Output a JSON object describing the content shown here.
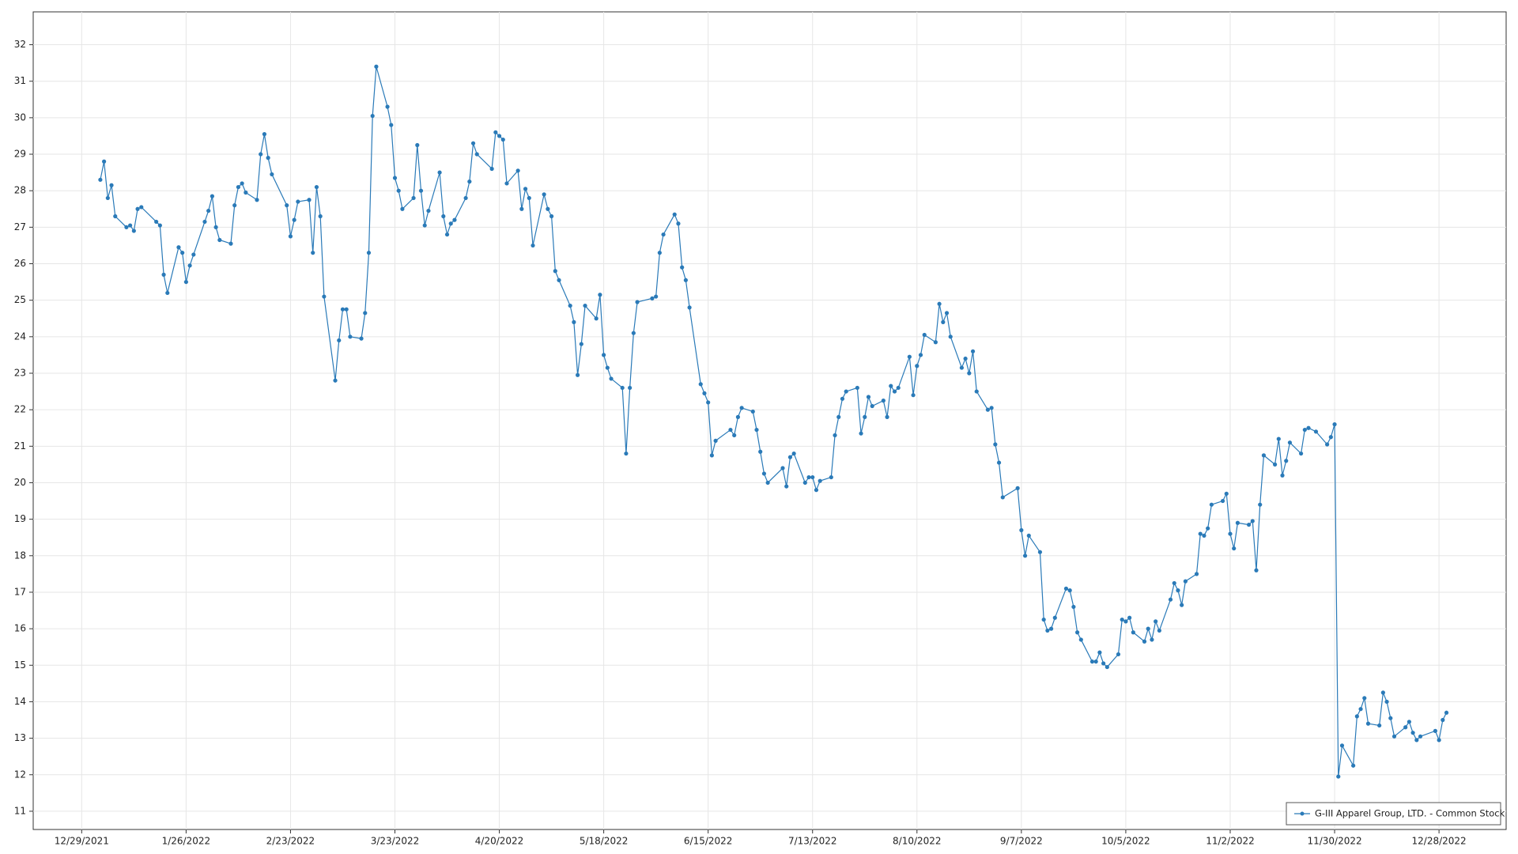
{
  "chart_data": {
    "type": "line",
    "grid": true,
    "legend": "lower right",
    "xlim": [
      "2021-12-16",
      "2023-01-15"
    ],
    "xticks": [
      {
        "value": "2021-12-29",
        "label": "12/29/2021"
      },
      {
        "value": "2022-01-26",
        "label": "1/26/2022"
      },
      {
        "value": "2022-02-23",
        "label": "2/23/2022"
      },
      {
        "value": "2022-03-23",
        "label": "3/23/2022"
      },
      {
        "value": "2022-04-20",
        "label": "4/20/2022"
      },
      {
        "value": "2022-05-18",
        "label": "5/18/2022"
      },
      {
        "value": "2022-06-15",
        "label": "6/15/2022"
      },
      {
        "value": "2022-07-13",
        "label": "7/13/2022"
      },
      {
        "value": "2022-08-10",
        "label": "8/10/2022"
      },
      {
        "value": "2022-09-07",
        "label": "9/7/2022"
      },
      {
        "value": "2022-10-05",
        "label": "10/5/2022"
      },
      {
        "value": "2022-11-02",
        "label": "11/2/2022"
      },
      {
        "value": "2022-11-30",
        "label": "11/30/2022"
      },
      {
        "value": "2022-12-28",
        "label": "12/28/2022"
      }
    ],
    "ylim": [
      10.5,
      32.9
    ],
    "yticks": [
      11,
      12,
      13,
      14,
      15,
      16,
      17,
      18,
      19,
      20,
      21,
      22,
      23,
      24,
      25,
      26,
      27,
      28,
      29,
      30,
      31,
      32
    ],
    "x": [
      "2022-01-03",
      "2022-01-04",
      "2022-01-05",
      "2022-01-06",
      "2022-01-07",
      "2022-01-10",
      "2022-01-11",
      "2022-01-12",
      "2022-01-13",
      "2022-01-14",
      "2022-01-18",
      "2022-01-19",
      "2022-01-20",
      "2022-01-21",
      "2022-01-24",
      "2022-01-25",
      "2022-01-26",
      "2022-01-27",
      "2022-01-28",
      "2022-01-31",
      "2022-02-01",
      "2022-02-02",
      "2022-02-03",
      "2022-02-04",
      "2022-02-07",
      "2022-02-08",
      "2022-02-09",
      "2022-02-10",
      "2022-02-11",
      "2022-02-14",
      "2022-02-15",
      "2022-02-16",
      "2022-02-17",
      "2022-02-18",
      "2022-02-22",
      "2022-02-23",
      "2022-02-24",
      "2022-02-25",
      "2022-02-28",
      "2022-03-01",
      "2022-03-02",
      "2022-03-03",
      "2022-03-04",
      "2022-03-07",
      "2022-03-08",
      "2022-03-09",
      "2022-03-10",
      "2022-03-11",
      "2022-03-14",
      "2022-03-15",
      "2022-03-16",
      "2022-03-17",
      "2022-03-18",
      "2022-03-21",
      "2022-03-22",
      "2022-03-23",
      "2022-03-24",
      "2022-03-25",
      "2022-03-28",
      "2022-03-29",
      "2022-03-30",
      "2022-03-31",
      "2022-04-01",
      "2022-04-04",
      "2022-04-05",
      "2022-04-06",
      "2022-04-07",
      "2022-04-08",
      "2022-04-11",
      "2022-04-12",
      "2022-04-13",
      "2022-04-14",
      "2022-04-18",
      "2022-04-19",
      "2022-04-20",
      "2022-04-21",
      "2022-04-22",
      "2022-04-25",
      "2022-04-26",
      "2022-04-27",
      "2022-04-28",
      "2022-04-29",
      "2022-05-02",
      "2022-05-03",
      "2022-05-04",
      "2022-05-05",
      "2022-05-06",
      "2022-05-09",
      "2022-05-10",
      "2022-05-11",
      "2022-05-12",
      "2022-05-13",
      "2022-05-16",
      "2022-05-17",
      "2022-05-18",
      "2022-05-19",
      "2022-05-20",
      "2022-05-23",
      "2022-05-24",
      "2022-05-25",
      "2022-05-26",
      "2022-05-27",
      "2022-05-31",
      "2022-06-01",
      "2022-06-02",
      "2022-06-03",
      "2022-06-06",
      "2022-06-07",
      "2022-06-08",
      "2022-06-09",
      "2022-06-10",
      "2022-06-13",
      "2022-06-14",
      "2022-06-15",
      "2022-06-16",
      "2022-06-17",
      "2022-06-21",
      "2022-06-22",
      "2022-06-23",
      "2022-06-24",
      "2022-06-27",
      "2022-06-28",
      "2022-06-29",
      "2022-06-30",
      "2022-07-01",
      "2022-07-05",
      "2022-07-06",
      "2022-07-07",
      "2022-07-08",
      "2022-07-11",
      "2022-07-12",
      "2022-07-13",
      "2022-07-14",
      "2022-07-15",
      "2022-07-18",
      "2022-07-19",
      "2022-07-20",
      "2022-07-21",
      "2022-07-22",
      "2022-07-25",
      "2022-07-26",
      "2022-07-27",
      "2022-07-28",
      "2022-07-29",
      "2022-08-01",
      "2022-08-02",
      "2022-08-03",
      "2022-08-04",
      "2022-08-05",
      "2022-08-08",
      "2022-08-09",
      "2022-08-10",
      "2022-08-11",
      "2022-08-12",
      "2022-08-15",
      "2022-08-16",
      "2022-08-17",
      "2022-08-18",
      "2022-08-19",
      "2022-08-22",
      "2022-08-23",
      "2022-08-24",
      "2022-08-25",
      "2022-08-26",
      "2022-08-29",
      "2022-08-30",
      "2022-08-31",
      "2022-09-01",
      "2022-09-02",
      "2022-09-06",
      "2022-09-07",
      "2022-09-08",
      "2022-09-09",
      "2022-09-12",
      "2022-09-13",
      "2022-09-14",
      "2022-09-15",
      "2022-09-16",
      "2022-09-19",
      "2022-09-20",
      "2022-09-21",
      "2022-09-22",
      "2022-09-23",
      "2022-09-26",
      "2022-09-27",
      "2022-09-28",
      "2022-09-29",
      "2022-09-30",
      "2022-10-03",
      "2022-10-04",
      "2022-10-05",
      "2022-10-06",
      "2022-10-07",
      "2022-10-10",
      "2022-10-11",
      "2022-10-12",
      "2022-10-13",
      "2022-10-14",
      "2022-10-17",
      "2022-10-18",
      "2022-10-19",
      "2022-10-20",
      "2022-10-21",
      "2022-10-24",
      "2022-10-25",
      "2022-10-26",
      "2022-10-27",
      "2022-10-28",
      "2022-10-31",
      "2022-11-01",
      "2022-11-02",
      "2022-11-03",
      "2022-11-04",
      "2022-11-07",
      "2022-11-08",
      "2022-11-09",
      "2022-11-10",
      "2022-11-11",
      "2022-11-14",
      "2022-11-15",
      "2022-11-16",
      "2022-11-17",
      "2022-11-18",
      "2022-11-21",
      "2022-11-22",
      "2022-11-23",
      "2022-11-25",
      "2022-11-28",
      "2022-11-29",
      "2022-11-30",
      "2022-12-01",
      "2022-12-02",
      "2022-12-05",
      "2022-12-06",
      "2022-12-07",
      "2022-12-08",
      "2022-12-09",
      "2022-12-12",
      "2022-12-13",
      "2022-12-14",
      "2022-12-15",
      "2022-12-16",
      "2022-12-19",
      "2022-12-20",
      "2022-12-21",
      "2022-12-22",
      "2022-12-23",
      "2022-12-27",
      "2022-12-28",
      "2022-12-29",
      "2022-12-30"
    ],
    "series": [
      {
        "name": "G-III Apparel Group, LTD. - Common Stock",
        "color": "#2a7ab8",
        "values": [
          28.3,
          28.8,
          27.8,
          28.15,
          27.3,
          27.0,
          27.05,
          26.9,
          27.5,
          27.55,
          27.15,
          27.05,
          25.7,
          25.2,
          26.45,
          26.3,
          25.5,
          25.95,
          26.25,
          27.15,
          27.45,
          27.85,
          27.0,
          26.65,
          26.55,
          27.6,
          28.1,
          28.2,
          27.95,
          27.75,
          29.0,
          29.55,
          28.9,
          28.45,
          27.6,
          26.75,
          27.2,
          27.7,
          27.75,
          26.3,
          28.1,
          27.3,
          25.1,
          22.8,
          23.9,
          24.75,
          24.75,
          24.0,
          23.95,
          24.65,
          26.3,
          30.05,
          31.4,
          30.3,
          29.8,
          28.35,
          28.0,
          27.5,
          27.8,
          29.25,
          28.0,
          27.05,
          27.45,
          28.5,
          27.3,
          26.8,
          27.1,
          27.2,
          27.8,
          28.25,
          29.3,
          29.0,
          28.6,
          29.6,
          29.5,
          29.4,
          28.2,
          28.55,
          27.5,
          28.05,
          27.8,
          26.5,
          27.9,
          27.5,
          27.3,
          25.8,
          25.55,
          24.85,
          24.4,
          22.95,
          23.8,
          24.85,
          24.5,
          25.15,
          23.5,
          23.15,
          22.85,
          22.6,
          20.8,
          22.6,
          24.1,
          24.95,
          25.05,
          25.1,
          26.3,
          26.8,
          27.35,
          27.1,
          25.9,
          25.55,
          24.8,
          22.7,
          22.45,
          22.2,
          20.75,
          21.15,
          21.45,
          21.3,
          21.8,
          22.05,
          21.95,
          21.45,
          20.85,
          20.25,
          20.0,
          20.4,
          19.9,
          20.7,
          20.8,
          20.0,
          20.15,
          20.15,
          19.8,
          20.05,
          20.15,
          21.3,
          21.8,
          22.3,
          22.5,
          22.6,
          21.35,
          21.8,
          22.35,
          22.1,
          22.25,
          21.8,
          22.65,
          22.5,
          22.6,
          23.45,
          22.4,
          23.2,
          23.5,
          24.05,
          23.85,
          24.9,
          24.4,
          24.65,
          24.0,
          23.15,
          23.4,
          23.0,
          23.6,
          22.5,
          22.0,
          22.05,
          21.05,
          20.55,
          19.6,
          19.85,
          18.7,
          18.0,
          18.55,
          18.1,
          16.25,
          15.95,
          16.0,
          16.3,
          17.1,
          17.05,
          16.6,
          15.9,
          15.7,
          15.1,
          15.1,
          15.35,
          15.05,
          14.95,
          15.3,
          16.25,
          16.2,
          16.3,
          15.9,
          15.65,
          16.0,
          15.7,
          16.2,
          15.95,
          16.8,
          17.25,
          17.05,
          16.65,
          17.3,
          17.5,
          18.6,
          18.55,
          18.75,
          19.4,
          19.5,
          19.7,
          18.6,
          18.2,
          18.9,
          18.85,
          18.95,
          17.6,
          19.4,
          20.75,
          20.5,
          21.2,
          20.2,
          20.6,
          21.1,
          20.8,
          21.45,
          21.5,
          21.4,
          21.05,
          21.25,
          21.6,
          11.95,
          12.8,
          12.25,
          13.6,
          13.8,
          14.1,
          13.4,
          13.35,
          14.25,
          14.0,
          13.55,
          13.05,
          13.3,
          13.45,
          13.15,
          12.95,
          13.05,
          13.2,
          12.95,
          13.5,
          13.7
        ]
      }
    ]
  }
}
